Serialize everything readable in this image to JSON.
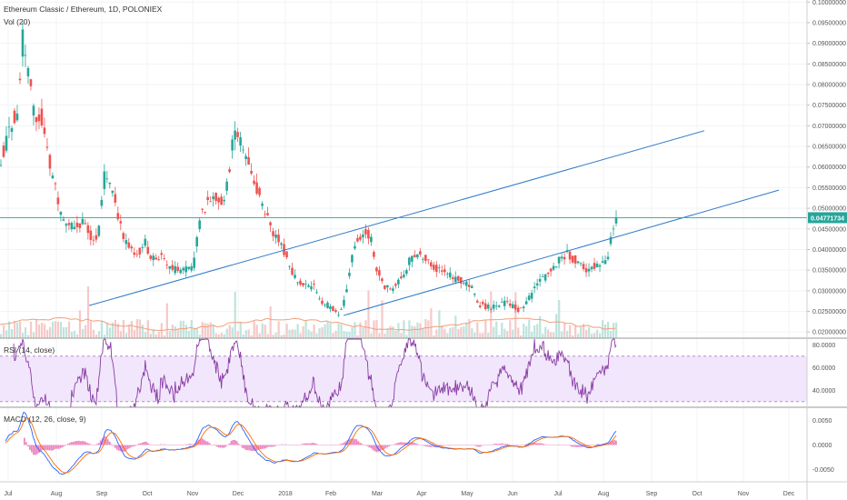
{
  "header": {
    "title": "Ethereum Classic / Ethereum, 1D, POLONIEX",
    "vol_label": "Vol (20)"
  },
  "rsi": {
    "label": "RSI (14, close)",
    "ticks": [
      {
        "v": 80,
        "t": "80.0000"
      },
      {
        "v": 60,
        "t": "60.0000"
      },
      {
        "v": 40,
        "t": "40.0000"
      }
    ]
  },
  "macd": {
    "label": "MACD (12, 26, close, 9)",
    "ticks": [
      {
        "v": 0.005,
        "t": "0.0050"
      },
      {
        "v": 0.0,
        "t": "0.0000"
      },
      {
        "v": -0.005,
        "t": "-0.0050"
      }
    ]
  },
  "colors": {
    "up": "#26a69a",
    "down": "#ef5350",
    "trend": "#2f7ac8",
    "rsi": "#8a3ca5",
    "rsi_band": "#f1e6fb",
    "macd": "#2962ff",
    "signal": "#ff6d00",
    "hist_pos": "#e66ab0",
    "hist_neg": "#e66ab0"
  },
  "chart_data": {
    "type": "candlestick",
    "title": "Ethereum Classic / Ethereum, 1D, POLONIEX",
    "x_labels": [
      "Jul",
      "Aug",
      "Sep",
      "Oct",
      "Nov",
      "Dec",
      "2018",
      "Feb",
      "Mar",
      "Apr",
      "May",
      "Jun",
      "Jul",
      "Aug",
      "Sep",
      "Oct",
      "Nov",
      "Dec"
    ],
    "y_ticks": [
      0.1,
      0.095,
      0.09,
      0.085,
      0.08,
      0.075,
      0.07,
      0.065,
      0.06,
      0.055,
      0.05,
      0.045,
      0.04,
      0.035,
      0.03,
      0.025,
      0.02
    ],
    "y_tick_labels": [
      "0.10000000",
      "0.09500000",
      "0.09000000",
      "0.08500000",
      "0.08000000",
      "0.07500000",
      "0.07000000",
      "0.06500000",
      "0.06000000",
      "0.05500000",
      "0.05000000",
      "0.04500000",
      "0.04000000",
      "0.03500000",
      "0.03000000",
      "0.02500000",
      "0.02000000"
    ],
    "ylim": [
      0.0185,
      0.1005
    ],
    "last_price": 0.04771734,
    "last_price_label": "0.04771734",
    "series_keypoints": [
      [
        0,
        0.062
      ],
      [
        8,
        0.068
      ],
      [
        18,
        0.074
      ],
      [
        24,
        0.091
      ],
      [
        30,
        0.082
      ],
      [
        36,
        0.073
      ],
      [
        44,
        0.072
      ],
      [
        54,
        0.061
      ],
      [
        64,
        0.05
      ],
      [
        72,
        0.046
      ],
      [
        82,
        0.045
      ],
      [
        92,
        0.047
      ],
      [
        102,
        0.042
      ],
      [
        108,
        0.045
      ],
      [
        114,
        0.058
      ],
      [
        120,
        0.057
      ],
      [
        127,
        0.051
      ],
      [
        134,
        0.043
      ],
      [
        142,
        0.04
      ],
      [
        148,
        0.038
      ],
      [
        158,
        0.042
      ],
      [
        166,
        0.038
      ],
      [
        176,
        0.038
      ],
      [
        184,
        0.036
      ],
      [
        194,
        0.035
      ],
      [
        204,
        0.035
      ],
      [
        212,
        0.036
      ],
      [
        220,
        0.048
      ],
      [
        228,
        0.052
      ],
      [
        236,
        0.053
      ],
      [
        244,
        0.052
      ],
      [
        250,
        0.056
      ],
      [
        254,
        0.065
      ],
      [
        260,
        0.068
      ],
      [
        266,
        0.066
      ],
      [
        274,
        0.06
      ],
      [
        282,
        0.055
      ],
      [
        290,
        0.05
      ],
      [
        298,
        0.045
      ],
      [
        306,
        0.042
      ],
      [
        314,
        0.039
      ],
      [
        320,
        0.035
      ],
      [
        328,
        0.032
      ],
      [
        334,
        0.031
      ],
      [
        344,
        0.031
      ],
      [
        354,
        0.027
      ],
      [
        364,
        0.026
      ],
      [
        370,
        0.024
      ],
      [
        378,
        0.027
      ],
      [
        384,
        0.035
      ],
      [
        390,
        0.042
      ],
      [
        396,
        0.043
      ],
      [
        402,
        0.045
      ],
      [
        408,
        0.042
      ],
      [
        414,
        0.035
      ],
      [
        422,
        0.031
      ],
      [
        430,
        0.03
      ],
      [
        438,
        0.032
      ],
      [
        446,
        0.035
      ],
      [
        454,
        0.039
      ],
      [
        462,
        0.039
      ],
      [
        470,
        0.038
      ],
      [
        480,
        0.035
      ],
      [
        490,
        0.034
      ],
      [
        500,
        0.033
      ],
      [
        510,
        0.032
      ],
      [
        518,
        0.031
      ],
      [
        526,
        0.027
      ],
      [
        536,
        0.026
      ],
      [
        546,
        0.026
      ],
      [
        556,
        0.027
      ],
      [
        566,
        0.026
      ],
      [
        574,
        0.025
      ],
      [
        582,
        0.028
      ],
      [
        590,
        0.031
      ],
      [
        598,
        0.033
      ],
      [
        606,
        0.035
      ],
      [
        614,
        0.037
      ],
      [
        622,
        0.039
      ],
      [
        630,
        0.038
      ],
      [
        638,
        0.036
      ],
      [
        646,
        0.035
      ],
      [
        654,
        0.036
      ],
      [
        662,
        0.037
      ],
      [
        668,
        0.038
      ],
      [
        672,
        0.043
      ],
      [
        676,
        0.047
      ],
      [
        678,
        0.0477
      ]
    ],
    "trendlines": [
      {
        "from": [
          98,
          0.0264
        ],
        "to": [
          775,
          0.0688
        ]
      },
      {
        "from": [
          378,
          0.024
        ],
        "to": [
          857,
          0.0544
        ]
      }
    ],
    "grid": true,
    "legend_position": "top-left"
  }
}
